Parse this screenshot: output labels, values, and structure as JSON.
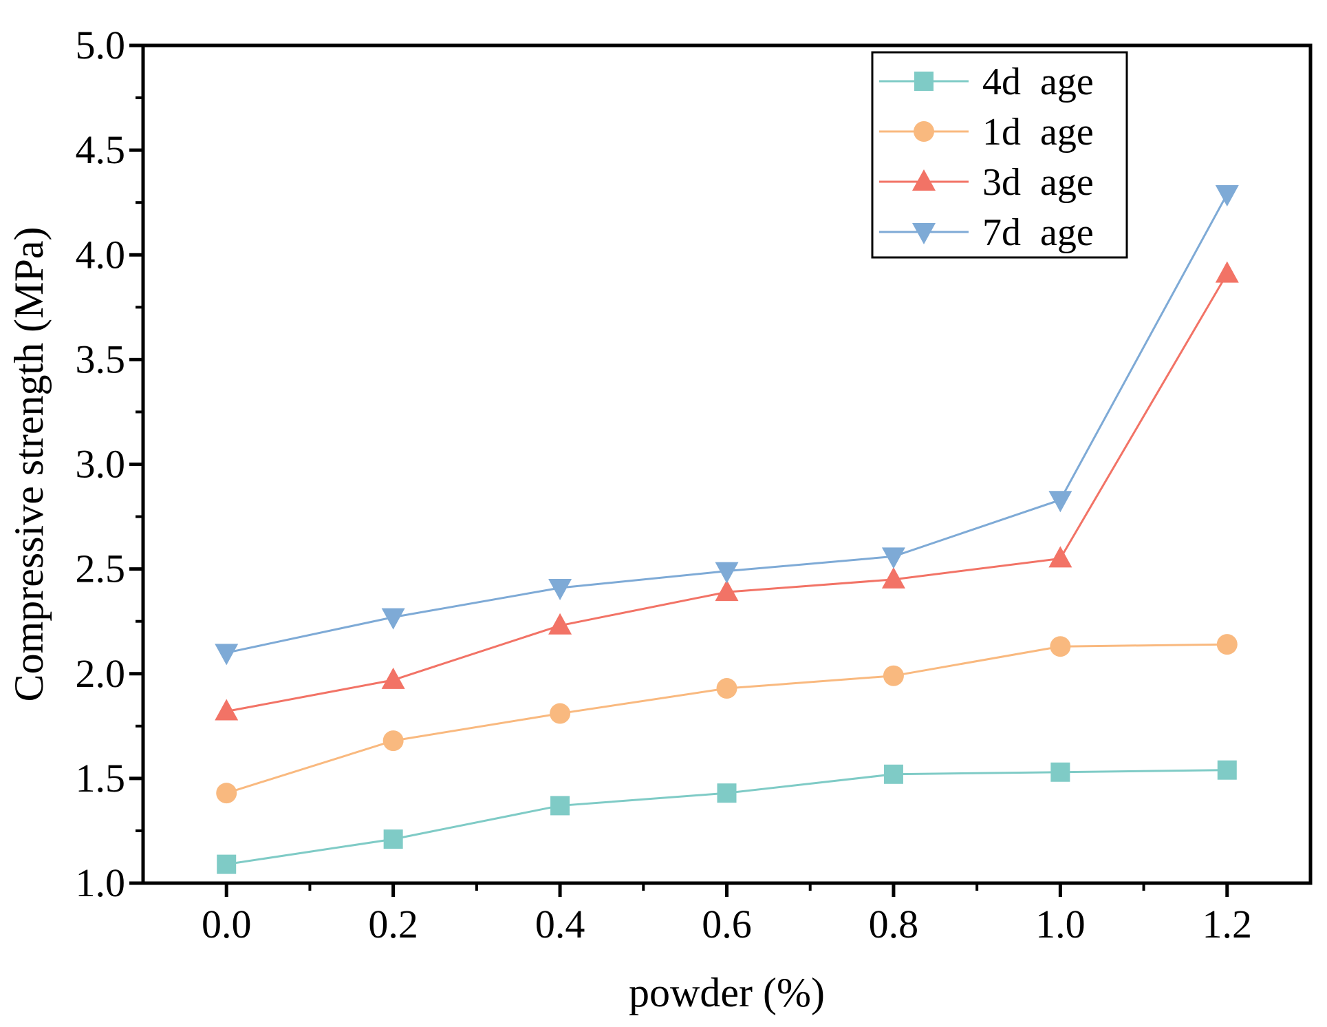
{
  "chart_data": {
    "type": "line",
    "title": "",
    "xlabel": "powder (%)",
    "ylabel": "Compressive strength (MPa)",
    "x": [
      0.0,
      0.2,
      0.4,
      0.6,
      0.8,
      1.0,
      1.2
    ],
    "xlim": [
      -0.1,
      1.3
    ],
    "ylim": [
      1.0,
      5.0
    ],
    "x_ticks": [
      "0.0",
      "0.2",
      "0.4",
      "0.6",
      "0.8",
      "1.0",
      "1.2"
    ],
    "y_ticks": [
      "1.0",
      "1.5",
      "2.0",
      "2.5",
      "3.0",
      "3.5",
      "4.0",
      "4.5",
      "5.0"
    ],
    "grid": false,
    "legend_position": "top-right",
    "series": [
      {
        "name": "4d  age",
        "color": "#7fcbc6",
        "marker": "square",
        "values": [
          1.09,
          1.21,
          1.37,
          1.43,
          1.52,
          1.53,
          1.54
        ]
      },
      {
        "name": "1d  age",
        "color": "#f9b97f",
        "marker": "circle",
        "values": [
          1.43,
          1.68,
          1.81,
          1.93,
          1.99,
          2.13,
          2.14
        ]
      },
      {
        "name": "3d  age",
        "color": "#f27366",
        "marker": "triangle-up",
        "values": [
          1.82,
          1.97,
          2.23,
          2.39,
          2.45,
          2.55,
          3.91
        ]
      },
      {
        "name": "7d  age",
        "color": "#7eaad6",
        "marker": "triangle-down",
        "values": [
          2.1,
          2.27,
          2.41,
          2.49,
          2.56,
          2.83,
          4.29
        ]
      }
    ]
  }
}
